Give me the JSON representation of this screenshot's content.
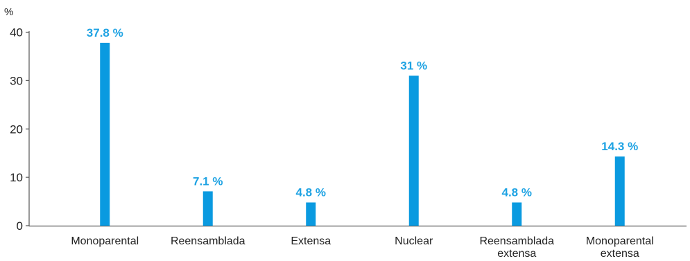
{
  "chart_data": {
    "type": "bar",
    "ylabel": "%",
    "ylim": [
      0,
      40
    ],
    "yticks": [
      "0",
      "10",
      "20",
      "30",
      "40"
    ],
    "categories": [
      [
        "Monoparental"
      ],
      [
        "Reensamblada"
      ],
      [
        "Extensa"
      ],
      [
        "Nuclear"
      ],
      [
        "Reensamblada",
        "extensa"
      ],
      [
        "Monoparental",
        "extensa"
      ]
    ],
    "values": [
      37.8,
      7.1,
      4.8,
      31,
      4.8,
      14.3
    ],
    "data_labels": [
      "37.8 %",
      "7.1 %",
      "4.8 %",
      "31 %",
      "4.8 %",
      "14.3 %"
    ],
    "grid": false,
    "legend": "none",
    "bar_color": "#0a9ae0",
    "label_color": "#1fa3e3"
  }
}
